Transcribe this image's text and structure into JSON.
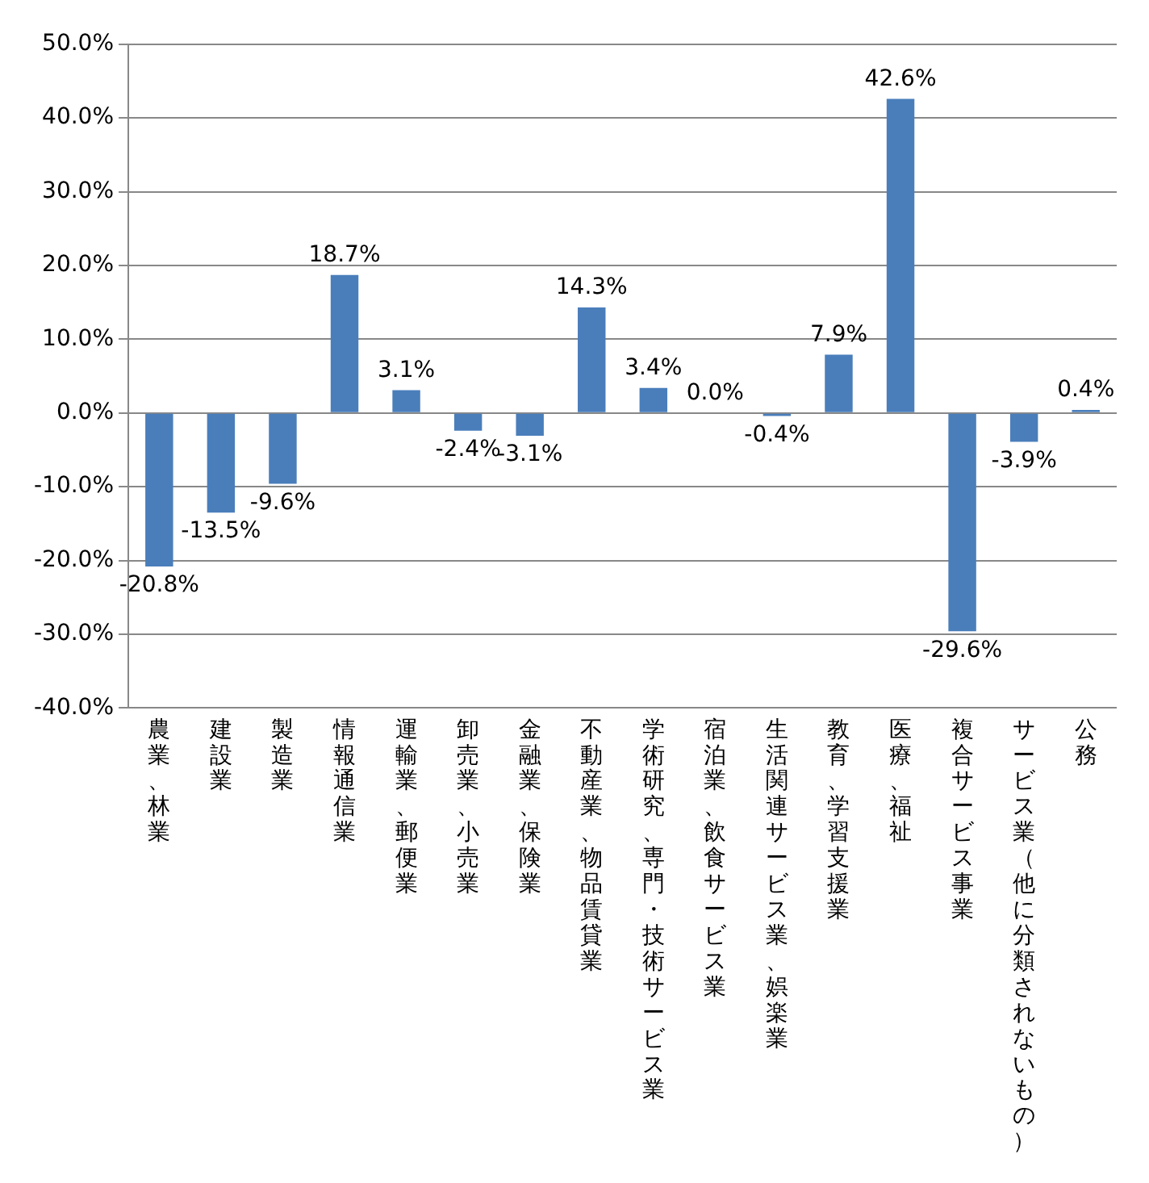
{
  "chart_data": {
    "type": "bar",
    "categories": [
      "農業、林業",
      "建設業",
      "製造業",
      "情報通信業",
      "運輸業、郵便業",
      "卸売業、小売業",
      "金融業、保険業",
      "不動産業、物品賃貸業",
      "学術研究、専門・技術サービス業",
      "宿泊業、飲食サービス業",
      "生活関連サービス業、娯楽業",
      "教育、学習支援業",
      "医療、福祉",
      "複合サービス事業",
      "サービス業（他に分類されないもの）",
      "公務"
    ],
    "values": [
      -20.8,
      -13.5,
      -9.6,
      18.7,
      3.1,
      -2.4,
      -3.1,
      14.3,
      3.4,
      0.0,
      -0.4,
      7.9,
      42.6,
      -29.6,
      -3.9,
      0.4
    ],
    "value_labels": [
      "-20.8%",
      "-13.5%",
      "-9.6%",
      "18.7%",
      "3.1%",
      "-2.4%",
      "-3.1%",
      "14.3%",
      "3.4%",
      "0.0%",
      "-0.4%",
      "7.9%",
      "42.6%",
      "-29.6%",
      "-3.9%",
      "0.4%"
    ],
    "color": "#4a7ebb",
    "ylim": [
      -40,
      50
    ],
    "yticks": [
      {
        "value": -40,
        "label": "-40.0%"
      },
      {
        "value": -30,
        "label": "-30.0%"
      },
      {
        "value": -20,
        "label": "-20.0%"
      },
      {
        "value": -10,
        "label": "-10.0%"
      },
      {
        "value": 0,
        "label": "0.0%"
      },
      {
        "value": 10,
        "label": "10.0%"
      },
      {
        "value": 20,
        "label": "20.0%"
      },
      {
        "value": 30,
        "label": "30.0%"
      },
      {
        "value": 40,
        "label": "40.0%"
      },
      {
        "value": 50,
        "label": "50.0%"
      }
    ],
    "grid": "y"
  }
}
